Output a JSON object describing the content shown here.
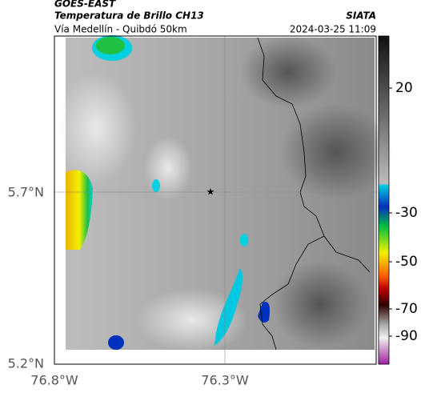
{
  "header": {
    "source": "GOES-EAST",
    "title": "Temperatura de Brillo CH13",
    "org": "SIATA",
    "subtitle": "Vía Medellín - Quibdó 50km",
    "timestamp": "2024-03-25 11:09"
  },
  "axes": {
    "lat_labels": [
      "5.7°N",
      "5.2°N"
    ],
    "lon_labels": [
      "76.8°W",
      "76.3°W"
    ]
  },
  "colorbar": {
    "ticks": [
      "20",
      "-30",
      "-50",
      "-70",
      "-90"
    ]
  }
}
